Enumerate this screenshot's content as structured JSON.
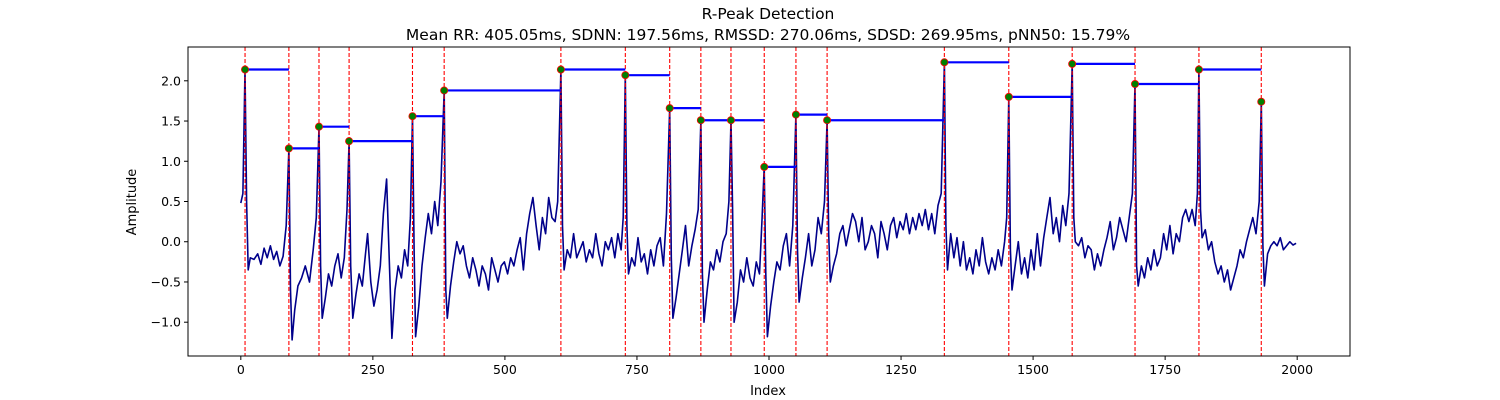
{
  "chart_data": {
    "type": "line",
    "title": "R-Peak Detection",
    "subtitle": "Mean RR: 405.05ms, SDNN: 197.56ms, RMSSD: 270.06ms, SDSD: 269.95ms, pNN50: 15.79%",
    "xlabel": "Index",
    "ylabel": "Amplitude",
    "xlim": [
      -100,
      2100
    ],
    "ylim": [
      -1.42,
      2.42
    ],
    "xticks": [
      0,
      250,
      500,
      750,
      1000,
      1250,
      1500,
      1750,
      2000
    ],
    "yticks": [
      -1.0,
      -0.5,
      0.0,
      0.5,
      1.0,
      1.5,
      2.0
    ],
    "grid": false,
    "colors": {
      "signal": "#00008b",
      "peak_lines": "#ff0000",
      "rr_bars": "#0000ff",
      "peak_fill": "#008000",
      "peak_edge": "#ff0000"
    },
    "peaks": [
      {
        "x": 8,
        "y": 2.14
      },
      {
        "x": 91,
        "y": 1.16
      },
      {
        "x": 148,
        "y": 1.43
      },
      {
        "x": 205,
        "y": 1.25
      },
      {
        "x": 325,
        "y": 1.56
      },
      {
        "x": 385,
        "y": 1.88
      },
      {
        "x": 606,
        "y": 2.14
      },
      {
        "x": 728,
        "y": 2.07
      },
      {
        "x": 812,
        "y": 1.66
      },
      {
        "x": 871,
        "y": 1.51
      },
      {
        "x": 928,
        "y": 1.51
      },
      {
        "x": 991,
        "y": 0.93
      },
      {
        "x": 1051,
        "y": 1.58
      },
      {
        "x": 1110,
        "y": 1.51
      },
      {
        "x": 1332,
        "y": 2.23
      },
      {
        "x": 1454,
        "y": 1.8
      },
      {
        "x": 1574,
        "y": 2.21
      },
      {
        "x": 1693,
        "y": 1.96
      },
      {
        "x": 1814,
        "y": 2.14
      },
      {
        "x": 1932,
        "y": 1.74
      }
    ],
    "signal_points": [
      [
        0,
        0.48
      ],
      [
        4,
        0.6
      ],
      [
        8,
        2.14
      ],
      [
        11,
        0.5
      ],
      [
        14,
        -0.35
      ],
      [
        18,
        -0.2
      ],
      [
        25,
        -0.22
      ],
      [
        32,
        -0.15
      ],
      [
        38,
        -0.28
      ],
      [
        44,
        -0.08
      ],
      [
        50,
        -0.2
      ],
      [
        56,
        -0.05
      ],
      [
        62,
        -0.22
      ],
      [
        68,
        -0.12
      ],
      [
        74,
        -0.3
      ],
      [
        80,
        -0.18
      ],
      [
        86,
        0.2
      ],
      [
        91,
        1.16
      ],
      [
        94,
        -0.6
      ],
      [
        97,
        -1.22
      ],
      [
        102,
        -0.85
      ],
      [
        108,
        -0.55
      ],
      [
        115,
        -0.45
      ],
      [
        122,
        -0.3
      ],
      [
        130,
        -0.5
      ],
      [
        137,
        -0.1
      ],
      [
        143,
        0.3
      ],
      [
        148,
        1.43
      ],
      [
        151,
        -0.3
      ],
      [
        154,
        -0.95
      ],
      [
        160,
        -0.7
      ],
      [
        166,
        -0.4
      ],
      [
        172,
        -0.55
      ],
      [
        178,
        -0.3
      ],
      [
        184,
        -0.15
      ],
      [
        190,
        -0.45
      ],
      [
        196,
        -0.2
      ],
      [
        201,
        0.4
      ],
      [
        205,
        1.25
      ],
      [
        208,
        -0.3
      ],
      [
        212,
        -0.95
      ],
      [
        218,
        -0.65
      ],
      [
        224,
        -0.4
      ],
      [
        230,
        -0.55
      ],
      [
        236,
        -0.15
      ],
      [
        240,
        0.1
      ],
      [
        246,
        -0.5
      ],
      [
        252,
        -0.8
      ],
      [
        258,
        -0.6
      ],
      [
        264,
        -0.3
      ],
      [
        270,
        0.35
      ],
      [
        276,
        0.78
      ],
      [
        281,
        -0.2
      ],
      [
        286,
        -1.2
      ],
      [
        292,
        -0.6
      ],
      [
        298,
        -0.3
      ],
      [
        304,
        -0.45
      ],
      [
        310,
        -0.1
      ],
      [
        316,
        -0.3
      ],
      [
        321,
        0.3
      ],
      [
        325,
        1.56
      ],
      [
        328,
        -0.1
      ],
      [
        331,
        -1.18
      ],
      [
        337,
        -0.8
      ],
      [
        343,
        -0.3
      ],
      [
        349,
        0.05
      ],
      [
        355,
        0.35
      ],
      [
        361,
        0.1
      ],
      [
        367,
        0.5
      ],
      [
        373,
        0.2
      ],
      [
        379,
        0.75
      ],
      [
        385,
        1.88
      ],
      [
        388,
        -0.6
      ],
      [
        391,
        -0.95
      ],
      [
        397,
        -0.55
      ],
      [
        403,
        -0.25
      ],
      [
        409,
        0.0
      ],
      [
        415,
        -0.15
      ],
      [
        421,
        -0.05
      ],
      [
        427,
        -0.3
      ],
      [
        433,
        -0.45
      ],
      [
        439,
        -0.2
      ],
      [
        445,
        -0.35
      ],
      [
        451,
        -0.55
      ],
      [
        457,
        -0.3
      ],
      [
        463,
        -0.4
      ],
      [
        469,
        -0.6
      ],
      [
        475,
        -0.2
      ],
      [
        481,
        -0.35
      ],
      [
        487,
        -0.5
      ],
      [
        493,
        -0.3
      ],
      [
        499,
        -0.25
      ],
      [
        505,
        -0.4
      ],
      [
        511,
        -0.2
      ],
      [
        517,
        -0.3
      ],
      [
        523,
        -0.1
      ],
      [
        529,
        0.05
      ],
      [
        535,
        -0.35
      ],
      [
        541,
        0.1
      ],
      [
        547,
        0.35
      ],
      [
        553,
        0.55
      ],
      [
        559,
        0.2
      ],
      [
        565,
        -0.1
      ],
      [
        571,
        0.3
      ],
      [
        577,
        0.1
      ],
      [
        583,
        0.55
      ],
      [
        589,
        0.3
      ],
      [
        595,
        0.25
      ],
      [
        600,
        0.5
      ],
      [
        606,
        2.14
      ],
      [
        609,
        0.2
      ],
      [
        612,
        -0.35
      ],
      [
        618,
        -0.1
      ],
      [
        624,
        -0.2
      ],
      [
        630,
        0.1
      ],
      [
        636,
        -0.2
      ],
      [
        642,
        -0.1
      ],
      [
        648,
        0.0
      ],
      [
        654,
        -0.25
      ],
      [
        660,
        -0.1
      ],
      [
        666,
        -0.2
      ],
      [
        672,
        0.1
      ],
      [
        678,
        -0.15
      ],
      [
        684,
        -0.3
      ],
      [
        690,
        0.0
      ],
      [
        696,
        -0.1
      ],
      [
        702,
        0.05
      ],
      [
        708,
        -0.2
      ],
      [
        714,
        0.1
      ],
      [
        720,
        -0.1
      ],
      [
        724,
        0.3
      ],
      [
        728,
        2.07
      ],
      [
        731,
        0.2
      ],
      [
        734,
        -0.4
      ],
      [
        740,
        -0.2
      ],
      [
        746,
        -0.3
      ],
      [
        752,
        0.05
      ],
      [
        758,
        -0.25
      ],
      [
        764,
        -0.15
      ],
      [
        770,
        -0.4
      ],
      [
        776,
        -0.1
      ],
      [
        782,
        -0.3
      ],
      [
        788,
        -0.05
      ],
      [
        794,
        0.05
      ],
      [
        800,
        -0.3
      ],
      [
        806,
        0.35
      ],
      [
        812,
        1.66
      ],
      [
        815,
        -0.2
      ],
      [
        818,
        -0.95
      ],
      [
        824,
        -0.7
      ],
      [
        830,
        -0.4
      ],
      [
        836,
        -0.1
      ],
      [
        842,
        0.2
      ],
      [
        848,
        -0.3
      ],
      [
        854,
        -0.05
      ],
      [
        860,
        0.15
      ],
      [
        866,
        0.4
      ],
      [
        871,
        1.51
      ],
      [
        874,
        -0.4
      ],
      [
        877,
        -1.0
      ],
      [
        883,
        -0.6
      ],
      [
        889,
        -0.25
      ],
      [
        895,
        -0.35
      ],
      [
        901,
        -0.1
      ],
      [
        907,
        -0.25
      ],
      [
        913,
        0.0
      ],
      [
        919,
        0.1
      ],
      [
        924,
        0.5
      ],
      [
        928,
        1.51
      ],
      [
        931,
        0.4
      ],
      [
        934,
        -1.0
      ],
      [
        940,
        -0.75
      ],
      [
        946,
        -0.35
      ],
      [
        952,
        -0.5
      ],
      [
        958,
        -0.2
      ],
      [
        964,
        -0.45
      ],
      [
        970,
        -0.55
      ],
      [
        976,
        -0.25
      ],
      [
        982,
        -0.4
      ],
      [
        987,
        0.3
      ],
      [
        991,
        0.93
      ],
      [
        994,
        -0.4
      ],
      [
        997,
        -1.18
      ],
      [
        1003,
        -0.8
      ],
      [
        1009,
        -0.5
      ],
      [
        1015,
        -0.25
      ],
      [
        1021,
        -0.35
      ],
      [
        1027,
        -0.05
      ],
      [
        1033,
        0.1
      ],
      [
        1039,
        -0.3
      ],
      [
        1045,
        0.2
      ],
      [
        1051,
        1.58
      ],
      [
        1054,
        -0.1
      ],
      [
        1057,
        -0.75
      ],
      [
        1063,
        -0.45
      ],
      [
        1069,
        -0.2
      ],
      [
        1075,
        0.1
      ],
      [
        1081,
        -0.3
      ],
      [
        1087,
        -0.1
      ],
      [
        1093,
        0.3
      ],
      [
        1099,
        0.1
      ],
      [
        1105,
        0.5
      ],
      [
        1110,
        1.51
      ],
      [
        1113,
        0.1
      ],
      [
        1116,
        -0.5
      ],
      [
        1122,
        -0.3
      ],
      [
        1128,
        -0.15
      ],
      [
        1134,
        0.1
      ],
      [
        1140,
        0.2
      ],
      [
        1146,
        -0.05
      ],
      [
        1152,
        0.15
      ],
      [
        1158,
        0.35
      ],
      [
        1164,
        0.25
      ],
      [
        1170,
        0.0
      ],
      [
        1176,
        0.3
      ],
      [
        1182,
        -0.1
      ],
      [
        1188,
        0.0
      ],
      [
        1194,
        0.2
      ],
      [
        1200,
        0.1
      ],
      [
        1206,
        -0.2
      ],
      [
        1212,
        0.25
      ],
      [
        1218,
        0.1
      ],
      [
        1224,
        -0.1
      ],
      [
        1230,
        0.2
      ],
      [
        1236,
        0.3
      ],
      [
        1242,
        0.05
      ],
      [
        1248,
        0.25
      ],
      [
        1254,
        0.15
      ],
      [
        1260,
        0.35
      ],
      [
        1266,
        0.1
      ],
      [
        1272,
        0.3
      ],
      [
        1278,
        0.15
      ],
      [
        1284,
        0.35
      ],
      [
        1290,
        0.2
      ],
      [
        1296,
        0.4
      ],
      [
        1302,
        0.15
      ],
      [
        1308,
        0.35
      ],
      [
        1314,
        0.1
      ],
      [
        1320,
        0.45
      ],
      [
        1326,
        0.6
      ],
      [
        1332,
        2.23
      ],
      [
        1335,
        0.2
      ],
      [
        1338,
        -0.35
      ],
      [
        1344,
        0.1
      ],
      [
        1350,
        -0.2
      ],
      [
        1356,
        0.05
      ],
      [
        1362,
        -0.3
      ],
      [
        1368,
        0.0
      ],
      [
        1374,
        -0.35
      ],
      [
        1380,
        -0.2
      ],
      [
        1386,
        -0.4
      ],
      [
        1392,
        -0.1
      ],
      [
        1398,
        -0.3
      ],
      [
        1404,
        0.05
      ],
      [
        1410,
        -0.25
      ],
      [
        1416,
        -0.4
      ],
      [
        1422,
        -0.2
      ],
      [
        1428,
        -0.35
      ],
      [
        1434,
        -0.1
      ],
      [
        1440,
        -0.3
      ],
      [
        1446,
        0.0
      ],
      [
        1450,
        0.3
      ],
      [
        1454,
        1.8
      ],
      [
        1457,
        -0.1
      ],
      [
        1460,
        -0.6
      ],
      [
        1466,
        -0.3
      ],
      [
        1472,
        0.0
      ],
      [
        1478,
        -0.4
      ],
      [
        1484,
        -0.2
      ],
      [
        1490,
        -0.45
      ],
      [
        1496,
        -0.1
      ],
      [
        1502,
        -0.35
      ],
      [
        1508,
        0.1
      ],
      [
        1514,
        -0.3
      ],
      [
        1520,
        0.05
      ],
      [
        1526,
        0.3
      ],
      [
        1532,
        0.55
      ],
      [
        1538,
        0.1
      ],
      [
        1544,
        0.3
      ],
      [
        1550,
        0.0
      ],
      [
        1556,
        0.45
      ],
      [
        1562,
        0.2
      ],
      [
        1568,
        0.6
      ],
      [
        1574,
        2.21
      ],
      [
        1577,
        0.3
      ],
      [
        1580,
        0.0
      ],
      [
        1586,
        -0.05
      ],
      [
        1592,
        0.05
      ],
      [
        1598,
        -0.2
      ],
      [
        1604,
        -0.05
      ],
      [
        1610,
        -0.1
      ],
      [
        1616,
        -0.35
      ],
      [
        1622,
        -0.15
      ],
      [
        1628,
        -0.3
      ],
      [
        1634,
        -0.1
      ],
      [
        1640,
        0.05
      ],
      [
        1646,
        0.25
      ],
      [
        1652,
        -0.1
      ],
      [
        1658,
        0.05
      ],
      [
        1664,
        0.3
      ],
      [
        1670,
        0.15
      ],
      [
        1676,
        0.0
      ],
      [
        1682,
        0.3
      ],
      [
        1688,
        0.6
      ],
      [
        1693,
        1.96
      ],
      [
        1696,
        -0.3
      ],
      [
        1699,
        -0.55
      ],
      [
        1705,
        -0.3
      ],
      [
        1711,
        -0.45
      ],
      [
        1717,
        -0.2
      ],
      [
        1723,
        -0.35
      ],
      [
        1729,
        -0.1
      ],
      [
        1735,
        -0.3
      ],
      [
        1741,
        -0.2
      ],
      [
        1747,
        0.1
      ],
      [
        1753,
        -0.1
      ],
      [
        1759,
        0.2
      ],
      [
        1765,
        -0.15
      ],
      [
        1771,
        0.1
      ],
      [
        1777,
        0.0
      ],
      [
        1783,
        0.3
      ],
      [
        1789,
        0.4
      ],
      [
        1795,
        0.25
      ],
      [
        1801,
        0.4
      ],
      [
        1807,
        0.2
      ],
      [
        1811,
        0.6
      ],
      [
        1814,
        2.14
      ],
      [
        1817,
        0.4
      ],
      [
        1820,
        0.05
      ],
      [
        1826,
        0.15
      ],
      [
        1832,
        -0.1
      ],
      [
        1838,
        0.0
      ],
      [
        1844,
        -0.25
      ],
      [
        1850,
        -0.4
      ],
      [
        1856,
        -0.3
      ],
      [
        1862,
        -0.5
      ],
      [
        1868,
        -0.35
      ],
      [
        1874,
        -0.6
      ],
      [
        1880,
        -0.45
      ],
      [
        1886,
        -0.3
      ],
      [
        1892,
        -0.1
      ],
      [
        1898,
        -0.2
      ],
      [
        1904,
        0.0
      ],
      [
        1910,
        0.15
      ],
      [
        1916,
        0.3
      ],
      [
        1922,
        0.1
      ],
      [
        1928,
        0.5
      ],
      [
        1932,
        1.74
      ],
      [
        1935,
        -0.05
      ],
      [
        1938,
        -0.55
      ],
      [
        1944,
        -0.15
      ],
      [
        1950,
        -0.05
      ],
      [
        1956,
        0.0
      ],
      [
        1962,
        -0.05
      ],
      [
        1968,
        0.05
      ],
      [
        1974,
        -0.1
      ],
      [
        1980,
        -0.05
      ],
      [
        1986,
        0.0
      ],
      [
        1992,
        -0.04
      ],
      [
        1998,
        -0.02
      ]
    ]
  }
}
